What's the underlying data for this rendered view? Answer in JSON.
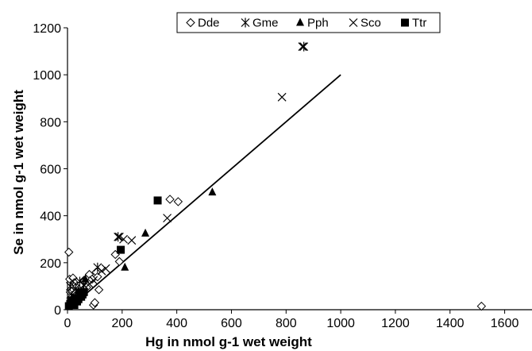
{
  "chart_data": {
    "type": "scatter",
    "title": "",
    "xlabel": "Hg in nmol g-1 wet weight",
    "ylabel": "Se in nmol g-1 wet weight",
    "xlim": [
      0,
      1700
    ],
    "ylim": [
      0,
      1200
    ],
    "x_ticks": [
      0,
      200,
      400,
      600,
      800,
      1000,
      1200,
      1400,
      1600
    ],
    "y_ticks": [
      0,
      200,
      400,
      600,
      800,
      1000,
      1200
    ],
    "grid": false,
    "legend_position": "top-center",
    "series": [
      {
        "name": "Dde",
        "marker": "open-diamond",
        "points": [
          [
            5,
            245
          ],
          [
            8,
            130
          ],
          [
            10,
            75
          ],
          [
            12,
            50
          ],
          [
            15,
            30
          ],
          [
            18,
            80
          ],
          [
            20,
            135
          ],
          [
            25,
            115
          ],
          [
            30,
            70
          ],
          [
            35,
            100
          ],
          [
            40,
            55
          ],
          [
            50,
            110
          ],
          [
            55,
            80
          ],
          [
            60,
            125
          ],
          [
            70,
            95
          ],
          [
            80,
            150
          ],
          [
            90,
            130
          ],
          [
            95,
            20
          ],
          [
            100,
            30
          ],
          [
            105,
            160
          ],
          [
            110,
            140
          ],
          [
            115,
            85
          ],
          [
            175,
            235
          ],
          [
            190,
            205
          ],
          [
            375,
            470
          ],
          [
            405,
            460
          ],
          [
            1515,
            15
          ]
        ]
      },
      {
        "name": "Gme",
        "marker": "asterisk",
        "points": [
          [
            10,
            100
          ],
          [
            15,
            60
          ],
          [
            30,
            90
          ],
          [
            45,
            120
          ],
          [
            60,
            105
          ],
          [
            110,
            180
          ],
          [
            185,
            310
          ],
          [
            865,
            1120
          ]
        ]
      },
      {
        "name": "Pph",
        "marker": "filled-triangle",
        "points": [
          [
            20,
            50
          ],
          [
            40,
            80
          ],
          [
            65,
            130
          ],
          [
            210,
            180
          ],
          [
            285,
            325
          ],
          [
            530,
            500
          ]
        ]
      },
      {
        "name": "Sco",
        "marker": "x-cross",
        "points": [
          [
            20,
            120
          ],
          [
            45,
            75
          ],
          [
            80,
            110
          ],
          [
            95,
            125
          ],
          [
            125,
            165
          ],
          [
            140,
            175
          ],
          [
            190,
            310
          ],
          [
            205,
            300
          ],
          [
            235,
            295
          ],
          [
            365,
            390
          ],
          [
            785,
            905
          ],
          [
            860,
            1120
          ]
        ]
      },
      {
        "name": "Ttr",
        "marker": "filled-square",
        "points": [
          [
            5,
            15
          ],
          [
            10,
            25
          ],
          [
            15,
            40
          ],
          [
            20,
            30
          ],
          [
            25,
            20
          ],
          [
            30,
            50
          ],
          [
            35,
            35
          ],
          [
            40,
            45
          ],
          [
            50,
            55
          ],
          [
            55,
            65
          ],
          [
            60,
            75
          ],
          [
            195,
            255
          ],
          [
            330,
            465
          ]
        ]
      }
    ],
    "regression_line": {
      "x": [
        0,
        1000
      ],
      "y": [
        0,
        1000
      ]
    },
    "colors": {
      "markers": "#000000",
      "axes": "#000000",
      "background": "#ffffff"
    }
  }
}
